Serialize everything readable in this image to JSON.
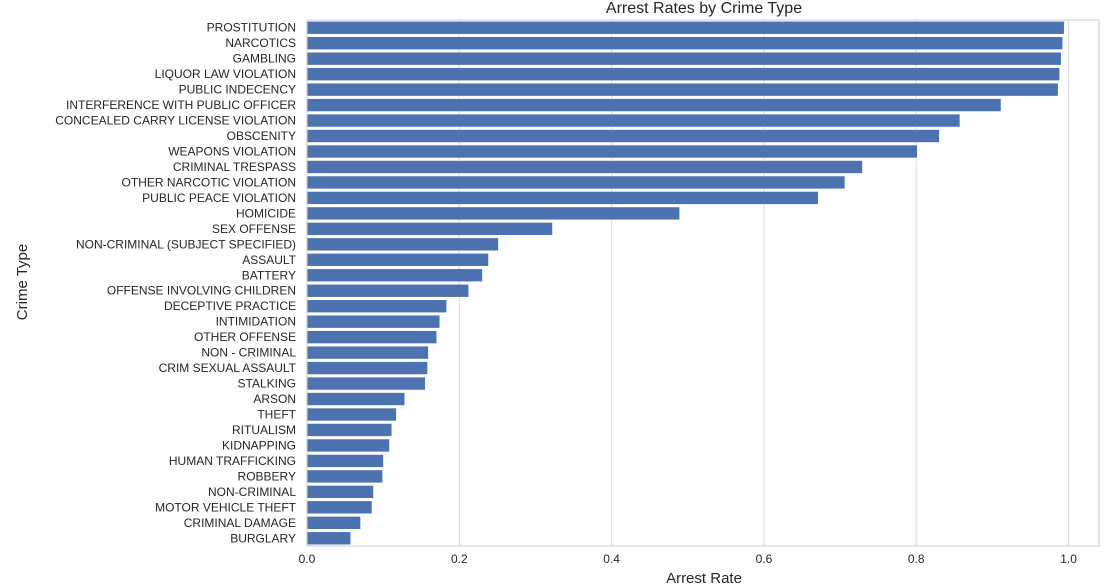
{
  "chart_data": {
    "type": "bar",
    "orientation": "horizontal",
    "title": "Arrest Rates by Crime Type",
    "xlabel": "Arrest Rate",
    "ylabel": "Crime Type",
    "xlim": [
      0,
      1.04
    ],
    "xticks": [
      0.0,
      0.2,
      0.4,
      0.6,
      0.8,
      1.0
    ],
    "xtick_labels": [
      "0.0",
      "0.2",
      "0.4",
      "0.6",
      "0.8",
      "1.0"
    ],
    "grid": "vertical",
    "bar_color": "#4c72b0",
    "grid_color": "#dddddd",
    "spine_color": "#cccccc",
    "categories": [
      "PROSTITUTION",
      "NARCOTICS",
      "GAMBLING",
      "LIQUOR LAW VIOLATION",
      "PUBLIC INDECENCY",
      "INTERFERENCE WITH PUBLIC OFFICER",
      "CONCEALED CARRY LICENSE VIOLATION",
      "OBSCENITY",
      "WEAPONS VIOLATION",
      "CRIMINAL TRESPASS",
      "OTHER NARCOTIC VIOLATION",
      "PUBLIC PEACE VIOLATION",
      "HOMICIDE",
      "SEX OFFENSE",
      "NON-CRIMINAL (SUBJECT SPECIFIED)",
      "ASSAULT",
      "BATTERY",
      "OFFENSE INVOLVING CHILDREN",
      "DECEPTIVE PRACTICE",
      "INTIMIDATION",
      "OTHER OFFENSE",
      "NON - CRIMINAL",
      "CRIM SEXUAL ASSAULT",
      "STALKING",
      "ARSON",
      "THEFT",
      "RITUALISM",
      "KIDNAPPING",
      "HUMAN TRAFFICKING",
      "ROBBERY",
      "NON-CRIMINAL",
      "MOTOR VEHICLE THEFT",
      "CRIMINAL DAMAGE",
      "BURGLARY"
    ],
    "values": [
      0.994,
      0.992,
      0.99,
      0.988,
      0.986,
      0.911,
      0.857,
      0.83,
      0.801,
      0.729,
      0.706,
      0.671,
      0.489,
      0.322,
      0.251,
      0.238,
      0.23,
      0.212,
      0.183,
      0.174,
      0.17,
      0.159,
      0.158,
      0.155,
      0.128,
      0.117,
      0.111,
      0.108,
      0.1,
      0.099,
      0.087,
      0.085,
      0.07,
      0.057
    ]
  }
}
